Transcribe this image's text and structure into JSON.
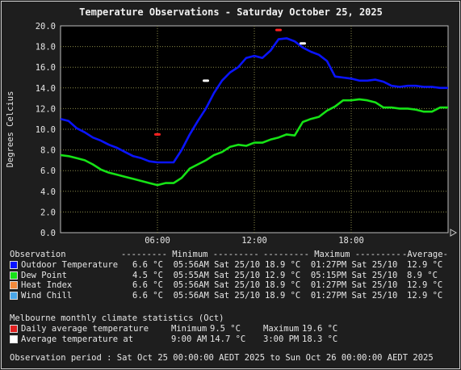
{
  "chart_data": {
    "type": "line",
    "title": "Temperature Observations - Saturday October 25, 2025",
    "ylabel": "Degrees Celcius",
    "ylim": [
      0,
      20
    ],
    "y_ticks": [
      "0.0",
      "2.0",
      "4.0",
      "6.0",
      "8.0",
      "10.0",
      "12.0",
      "14.0",
      "16.0",
      "18.0",
      "20.0"
    ],
    "x_ticks": [
      "06:00",
      "12:00",
      "18:00"
    ],
    "grid": true,
    "series": [
      {
        "name": "Outdoor Temperature",
        "color": "#0a14ff",
        "hours": [
          0,
          0.5,
          1,
          1.5,
          2,
          2.5,
          3,
          3.5,
          4,
          4.5,
          5,
          5.5,
          6,
          6.5,
          7,
          7.5,
          8,
          8.5,
          9,
          9.5,
          10,
          10.5,
          11,
          11.5,
          12,
          12.5,
          13,
          13.5,
          14,
          14.5,
          15,
          15.5,
          16,
          16.5,
          17,
          17.5,
          18,
          18.5,
          19,
          19.5,
          20,
          20.5,
          21,
          21.5,
          22,
          22.5,
          23,
          23.5,
          24
        ],
        "values": [
          11.0,
          10.8,
          10.1,
          9.7,
          9.2,
          8.9,
          8.5,
          8.2,
          7.8,
          7.4,
          7.2,
          6.9,
          6.8,
          6.8,
          6.8,
          8.0,
          9.5,
          10.8,
          12.0,
          13.5,
          14.7,
          15.5,
          16.0,
          16.9,
          17.1,
          16.9,
          17.6,
          18.7,
          18.8,
          18.5,
          17.9,
          17.5,
          17.2,
          16.6,
          15.1,
          15.0,
          14.9,
          14.7,
          14.7,
          14.8,
          14.6,
          14.2,
          14.1,
          14.2,
          14.2,
          14.1,
          14.1,
          14.0,
          14.0
        ]
      },
      {
        "name": "Dew Point",
        "color": "#16e316",
        "hours": [
          0,
          0.5,
          1,
          1.5,
          2,
          2.5,
          3,
          3.5,
          4,
          4.5,
          5,
          5.5,
          6,
          6.5,
          7,
          7.5,
          8,
          8.5,
          9,
          9.5,
          10,
          10.5,
          11,
          11.5,
          12,
          12.5,
          13,
          13.5,
          14,
          14.5,
          15,
          15.5,
          16,
          16.5,
          17,
          17.5,
          18,
          18.5,
          19,
          19.5,
          20,
          20.5,
          21,
          21.5,
          22,
          22.5,
          23,
          23.5,
          24
        ],
        "values": [
          7.5,
          7.4,
          7.2,
          7.0,
          6.6,
          6.1,
          5.8,
          5.6,
          5.4,
          5.2,
          5.0,
          4.8,
          4.6,
          4.8,
          4.8,
          5.3,
          6.2,
          6.6,
          7.0,
          7.5,
          7.8,
          8.3,
          8.5,
          8.4,
          8.7,
          8.7,
          9.0,
          9.2,
          9.5,
          9.4,
          10.7,
          11.0,
          11.2,
          11.8,
          12.2,
          12.8,
          12.8,
          12.9,
          12.8,
          12.6,
          12.1,
          12.1,
          12.0,
          12.0,
          11.9,
          11.7,
          11.7,
          12.1,
          12.1
        ]
      }
    ],
    "markers": [
      {
        "label": "Daily average temperature minimum",
        "color": "#ff2020",
        "hour": 6.0,
        "value": 9.5
      },
      {
        "label": "Average temperature at 9:00 AM",
        "color": "#ffffff",
        "hour": 9.0,
        "value": 14.7
      },
      {
        "label": "Daily average temperature maximum",
        "color": "#ff2020",
        "hour": 13.5,
        "value": 19.6
      },
      {
        "label": "Average temperature at 3:00 PM",
        "color": "#ffffff",
        "hour": 15.0,
        "value": 18.3
      }
    ]
  },
  "observations": {
    "header": "Observation",
    "col_min": "--------- Minimum ---------",
    "col_max": "--------- Maximum ---------",
    "col_avg": "-Average-",
    "rows": [
      {
        "name": "Outdoor Temperature",
        "color": "#0a14ff",
        "min": "6.6 °C  05:56AM Sat 25/10",
        "max": "18.9 °C  01:27PM Sat 25/10",
        "avg": "12.9 °C"
      },
      {
        "name": "Dew Point",
        "color": "#16e316",
        "min": "4.5 °C  05:55AM Sat 25/10",
        "max": "12.9 °C  05:15PM Sat 25/10",
        "avg": "8.9 °C"
      },
      {
        "name": "Heat Index",
        "color": "#f08a3c",
        "min": "6.6 °C  05:56AM Sat 25/10",
        "max": "18.9 °C  01:27PM Sat 25/10",
        "avg": "12.9 °C"
      },
      {
        "name": "Wind Chill",
        "color": "#4aa6e8",
        "min": "6.6 °C  05:56AM Sat 25/10",
        "max": "18.9 °C  01:27PM Sat 25/10",
        "avg": "12.9 °C"
      }
    ]
  },
  "climate": {
    "header": "Melbourne monthly climate statistics (Oct)",
    "rows": [
      {
        "name": "Daily average temperature",
        "color": "#e02020",
        "label1": "Minimum",
        "value1": "9.5 °C",
        "label2": "Maximum",
        "value2": "19.6 °C"
      },
      {
        "name": "Average temperature at",
        "color": "#ffffff",
        "label1": "9:00 AM",
        "value1": "14.7 °C",
        "label2": "3:00 PM",
        "value2": "18.3 °C"
      }
    ]
  },
  "footer": "Observation period : Sat Oct 25 00:00:00 AEDT 2025 to Sun Oct 26 00:00:00 AEDT 2025"
}
